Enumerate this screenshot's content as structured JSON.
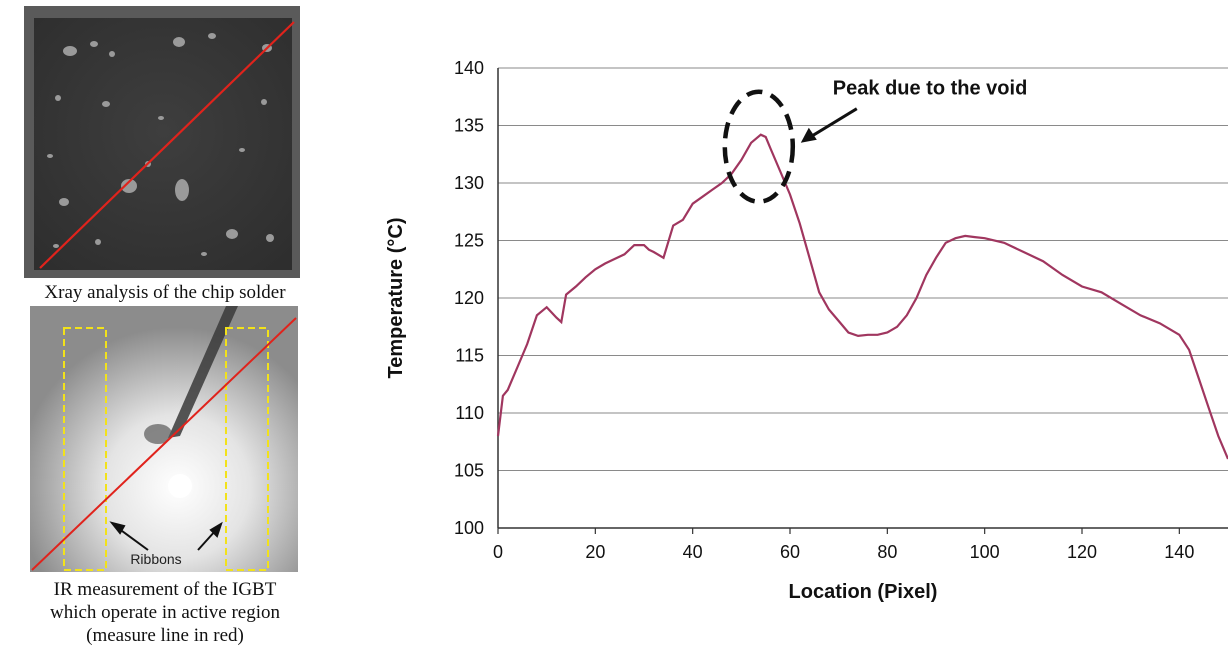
{
  "figure": {
    "xray_caption": "Xray analysis of the chip solder",
    "ir_caption_lines": [
      "IR measurement of the IGBT",
      "which operate in active region",
      "(measure line in red)"
    ],
    "ribbons_label": "Ribbons",
    "colors": {
      "measure_line": "#e0231c",
      "ribbon_outline": "#f2e21a",
      "xray_background": "#3b3b3b",
      "ir_background": "#9a9a9a"
    }
  },
  "chart_data": {
    "type": "line",
    "xlabel": "Location (Pixel)",
    "ylabel": "Temperature (°C)",
    "xlim": [
      0,
      150
    ],
    "ylim": [
      100,
      140
    ],
    "xticks": [
      0,
      20,
      40,
      60,
      80,
      100,
      120,
      140
    ],
    "yticks": [
      100,
      105,
      110,
      115,
      120,
      125,
      130,
      135,
      140
    ],
    "grid": "horizontal",
    "annotation": "Peak due to the void",
    "line_color": "#a0365f",
    "series": [
      {
        "x": [
          0,
          1,
          2,
          4,
          6,
          8,
          10,
          12,
          13,
          14,
          16,
          18,
          20,
          22,
          24,
          26,
          28,
          30,
          31,
          32,
          34,
          36,
          38,
          40,
          42,
          44,
          46,
          48,
          50,
          52,
          54,
          55,
          56,
          58,
          60,
          62,
          64,
          66,
          68,
          70,
          72,
          74,
          76,
          78,
          80,
          82,
          84,
          86,
          88,
          90,
          92,
          94,
          96,
          98,
          100,
          104,
          108,
          112,
          116,
          120,
          124,
          128,
          132,
          136,
          140,
          142,
          144,
          146,
          148,
          150
        ],
        "y": [
          108,
          111.5,
          112,
          114,
          116,
          118.5,
          119.2,
          118.3,
          117.9,
          120.3,
          121,
          121.8,
          122.5,
          123,
          123.4,
          123.8,
          124.6,
          124.6,
          124.2,
          124,
          123.5,
          126.3,
          126.8,
          128.2,
          128.8,
          129.4,
          130,
          130.8,
          132,
          133.5,
          134.2,
          134,
          133,
          131,
          129,
          126.5,
          123.5,
          120.5,
          119,
          118,
          117,
          116.7,
          116.8,
          116.8,
          117,
          117.5,
          118.5,
          120,
          122,
          123.5,
          124.8,
          125.2,
          125.4,
          125.3,
          125.2,
          124.8,
          124,
          123.2,
          122,
          121,
          120.5,
          119.5,
          118.5,
          117.8,
          116.8,
          115.5,
          113,
          110.5,
          108,
          106
        ]
      }
    ]
  }
}
